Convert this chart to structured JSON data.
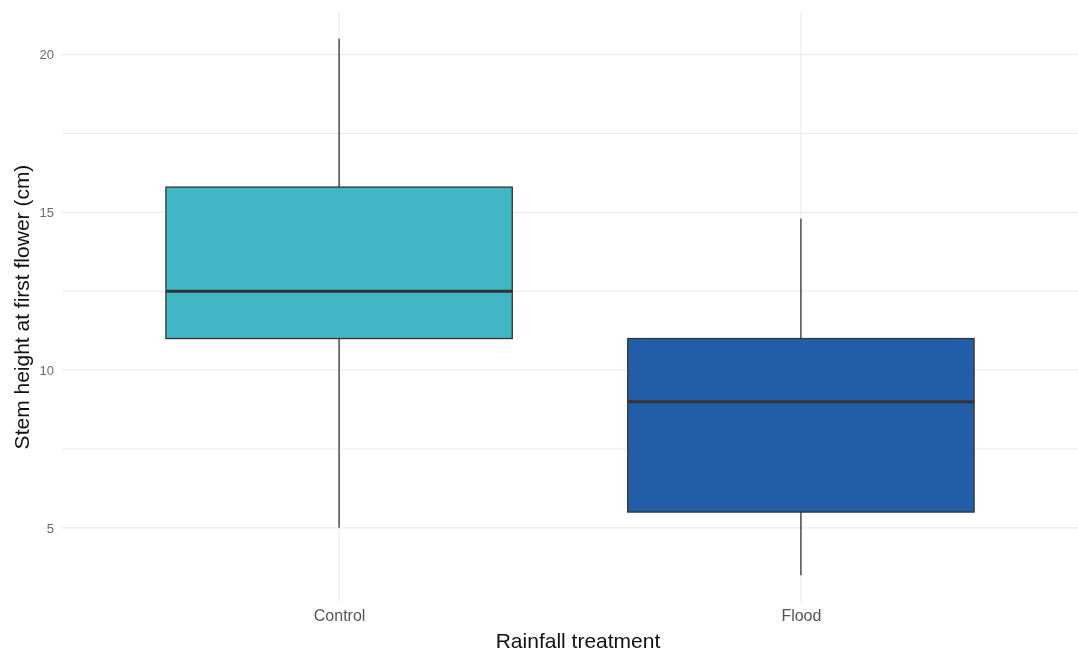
{
  "chart_data": {
    "type": "box",
    "xlabel": "Rainfall treatment",
    "ylabel": "Stem height at first flower (cm)",
    "categories": [
      "Control",
      "Flood"
    ],
    "colors": [
      "#41b6c4",
      "#225ea8"
    ],
    "boxes": [
      {
        "low": 5,
        "q1": 11,
        "median": 12.5,
        "q3": 15.8,
        "high": 20.5
      },
      {
        "low": 3.5,
        "q1": 5.5,
        "median": 9,
        "q3": 11,
        "high": 14.8
      }
    ],
    "ylim": [
      2.65,
      21.35
    ],
    "yticks": [
      5,
      {
        "value": 7.5,
        "label": null
      },
      10,
      {
        "value": 12.5,
        "label": null
      },
      15,
      {
        "value": 17.5,
        "label": null
      },
      20
    ],
    "grid": true
  }
}
